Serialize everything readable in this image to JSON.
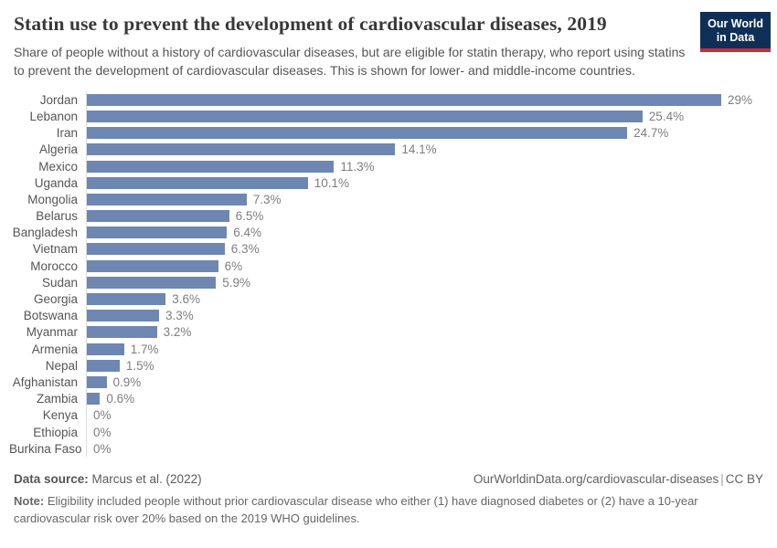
{
  "header": {
    "title": "Statin use to prevent the development of cardiovascular diseases, 2019",
    "subtitle": "Share of people without a history of cardiovascular diseases, but are eligible for statin therapy, who report using statins to prevent the development of cardiovascular diseases. This is shown for lower- and middle-income countries.",
    "logo": {
      "line1": "Our World",
      "line2": "in Data"
    }
  },
  "chart_data": {
    "type": "bar",
    "orientation": "horizontal",
    "title": "Statin use to prevent the development of cardiovascular diseases, 2019",
    "categories": [
      "Jordan",
      "Lebanon",
      "Iran",
      "Algeria",
      "Mexico",
      "Uganda",
      "Mongolia",
      "Belarus",
      "Bangladesh",
      "Vietnam",
      "Morocco",
      "Sudan",
      "Georgia",
      "Botswana",
      "Myanmar",
      "Armenia",
      "Nepal",
      "Afghanistan",
      "Zambia",
      "Kenya",
      "Ethiopia",
      "Burkina Faso"
    ],
    "values": [
      29,
      25.4,
      24.7,
      14.1,
      11.3,
      10.1,
      7.3,
      6.5,
      6.4,
      6.3,
      6,
      5.9,
      3.6,
      3.3,
      3.2,
      1.7,
      1.5,
      0.9,
      0.6,
      0,
      0,
      0
    ],
    "value_labels": [
      "29%",
      "25.4%",
      "24.7%",
      "14.1%",
      "11.3%",
      "10.1%",
      "7.3%",
      "6.5%",
      "6.4%",
      "6.3%",
      "6%",
      "5.9%",
      "3.6%",
      "3.3%",
      "3.2%",
      "1.7%",
      "1.5%",
      "0.9%",
      "0.6%",
      "0%",
      "0%",
      "0%"
    ],
    "xlabel": "",
    "ylabel": "",
    "xlim": [
      0,
      29
    ],
    "grid": false,
    "legend": false,
    "bar_color": "#6e87b2"
  },
  "footer": {
    "data_source_label": "Data source:",
    "data_source_value": " Marcus et al. (2022)",
    "link": "OurWorldinData.org/cardiovascular-diseases",
    "separator": "|",
    "license": "CC BY",
    "note_label": "Note:",
    "note_value": " Eligibility included people without prior cardiovascular disease who either (1) have diagnosed diabetes or (2) have a 10-year cardiovascular risk over 20% based on the 2019 WHO guidelines."
  },
  "colors": {
    "bar": "#6e87b2",
    "logo_navy": "#0f2f56",
    "logo_red": "#c62d35",
    "axis_line": "#dcdcdc"
  }
}
